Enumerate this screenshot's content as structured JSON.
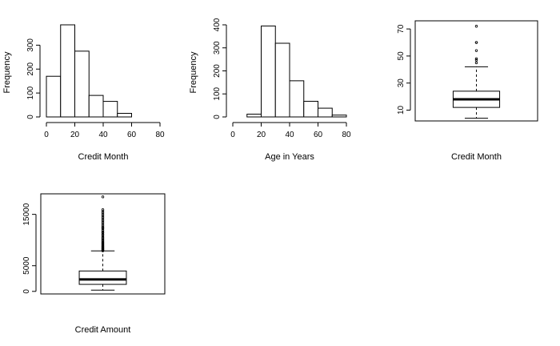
{
  "chart_data": [
    {
      "type": "bar",
      "subtype": "histogram",
      "xlabel": "Credit Month",
      "ylabel": "Frequency",
      "bins": [
        [
          0,
          10
        ],
        [
          10,
          20
        ],
        [
          20,
          30
        ],
        [
          30,
          40
        ],
        [
          40,
          50
        ],
        [
          50,
          60
        ],
        [
          60,
          70
        ],
        [
          70,
          80
        ]
      ],
      "values": [
        170,
        385,
        275,
        90,
        65,
        15,
        0,
        0
      ],
      "xlim": [
        0,
        80
      ],
      "ylim": [
        0,
        385
      ],
      "xticks": [
        0,
        20,
        40,
        60,
        80
      ],
      "yticks": [
        0,
        100,
        200,
        300
      ]
    },
    {
      "type": "bar",
      "subtype": "histogram",
      "xlabel": "Age in Years",
      "ylabel": "Frequency",
      "bins": [
        [
          0,
          10
        ],
        [
          10,
          20
        ],
        [
          20,
          30
        ],
        [
          30,
          40
        ],
        [
          40,
          50
        ],
        [
          50,
          60
        ],
        [
          60,
          70
        ],
        [
          70,
          80
        ]
      ],
      "values": [
        0,
        12,
        395,
        320,
        157,
        68,
        38,
        8
      ],
      "xlim": [
        0,
        80
      ],
      "ylim": [
        0,
        400
      ],
      "xticks": [
        0,
        20,
        40,
        60,
        80
      ],
      "yticks": [
        0,
        100,
        200,
        300,
        400
      ]
    },
    {
      "type": "box",
      "xlabel": "Credit Month",
      "ylim": [
        2,
        76
      ],
      "yticks": [
        10,
        30,
        50,
        70
      ],
      "min": 4,
      "q1": 12,
      "median": 18,
      "q3": 24,
      "max": 42,
      "outliers": [
        45,
        47,
        48,
        54,
        60,
        60,
        72
      ]
    },
    {
      "type": "box",
      "xlabel": "Credit Amount",
      "ylim": [
        -500,
        19000
      ],
      "yticks": [
        0,
        5000,
        15000
      ],
      "min": 250,
      "q1": 1366,
      "median": 2320,
      "q3": 3972,
      "max": 7882,
      "outliers": [
        7900,
        8000,
        8100,
        8250,
        8350,
        8450,
        8600,
        8700,
        8850,
        9000,
        9150,
        9300,
        9450,
        9600,
        9800,
        10000,
        10200,
        10400,
        10600,
        10900,
        11100,
        11400,
        11600,
        11900,
        12200,
        12400,
        12600,
        12900,
        13200,
        13500,
        13800,
        14100,
        14400,
        14700,
        15000,
        15300,
        15600,
        15900,
        18400
      ]
    }
  ]
}
